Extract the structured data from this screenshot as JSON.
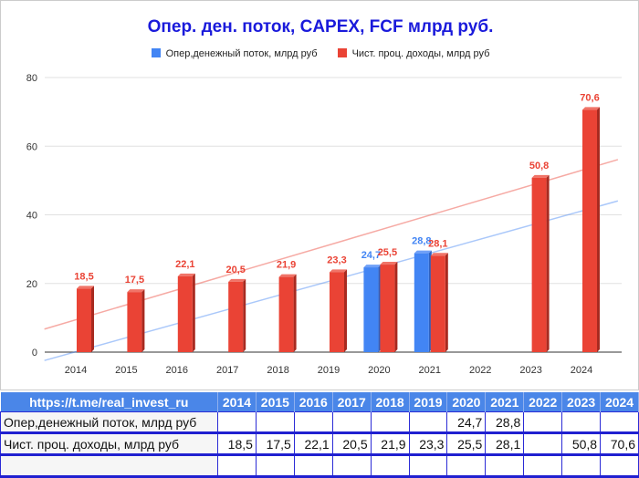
{
  "chart_data": {
    "type": "bar",
    "title": "Опер. ден. поток, CAPEX, FCF млрд руб.",
    "categories": [
      "2014",
      "2015",
      "2016",
      "2017",
      "2018",
      "2019",
      "2020",
      "2021",
      "2022",
      "2023",
      "2024"
    ],
    "series": [
      {
        "name": "Опер,денежный поток, млрд руб",
        "color": "#4285f4",
        "values": [
          null,
          null,
          null,
          null,
          null,
          null,
          24.7,
          28.8,
          null,
          null,
          null
        ],
        "labels": [
          "",
          "",
          "",
          "",
          "",
          "",
          "24,7",
          "28,8",
          "",
          "",
          ""
        ],
        "trendline": "linear"
      },
      {
        "name": "Чист. проц. доходы, млрд руб",
        "color": "#ea4335",
        "values": [
          18.5,
          17.5,
          22.1,
          20.5,
          21.9,
          23.3,
          25.5,
          28.1,
          null,
          50.8,
          70.6
        ],
        "labels": [
          "18,5",
          "17,5",
          "22,1",
          "20,5",
          "21,9",
          "23,3",
          "25,5",
          "28,1",
          "",
          "50,8",
          "70,6"
        ],
        "trendline": "linear"
      }
    ],
    "ylim": [
      0,
      80
    ],
    "yticks": [
      "0",
      "20",
      "40",
      "60",
      "80"
    ],
    "legend": "top",
    "grid": true
  },
  "table": {
    "header": [
      "https://t.me/real_invest_ru",
      "2014",
      "2015",
      "2016",
      "2017",
      "2018",
      "2019",
      "2020",
      "2021",
      "2022",
      "2023",
      "2024"
    ],
    "rows": [
      [
        "Опер,денежный поток, млрд руб",
        "",
        "",
        "",
        "",
        "",
        "",
        "24,7",
        "28,8",
        "",
        "",
        ""
      ],
      [
        "Чист. проц. доходы, млрд руб",
        "18,5",
        "17,5",
        "22,1",
        "20,5",
        "21,9",
        "23,3",
        "25,5",
        "28,1",
        "",
        "50,8",
        "70,6"
      ],
      [
        "",
        "",
        "",
        "",
        "",
        "",
        "",
        "",
        "",
        "",
        "",
        ""
      ]
    ]
  }
}
